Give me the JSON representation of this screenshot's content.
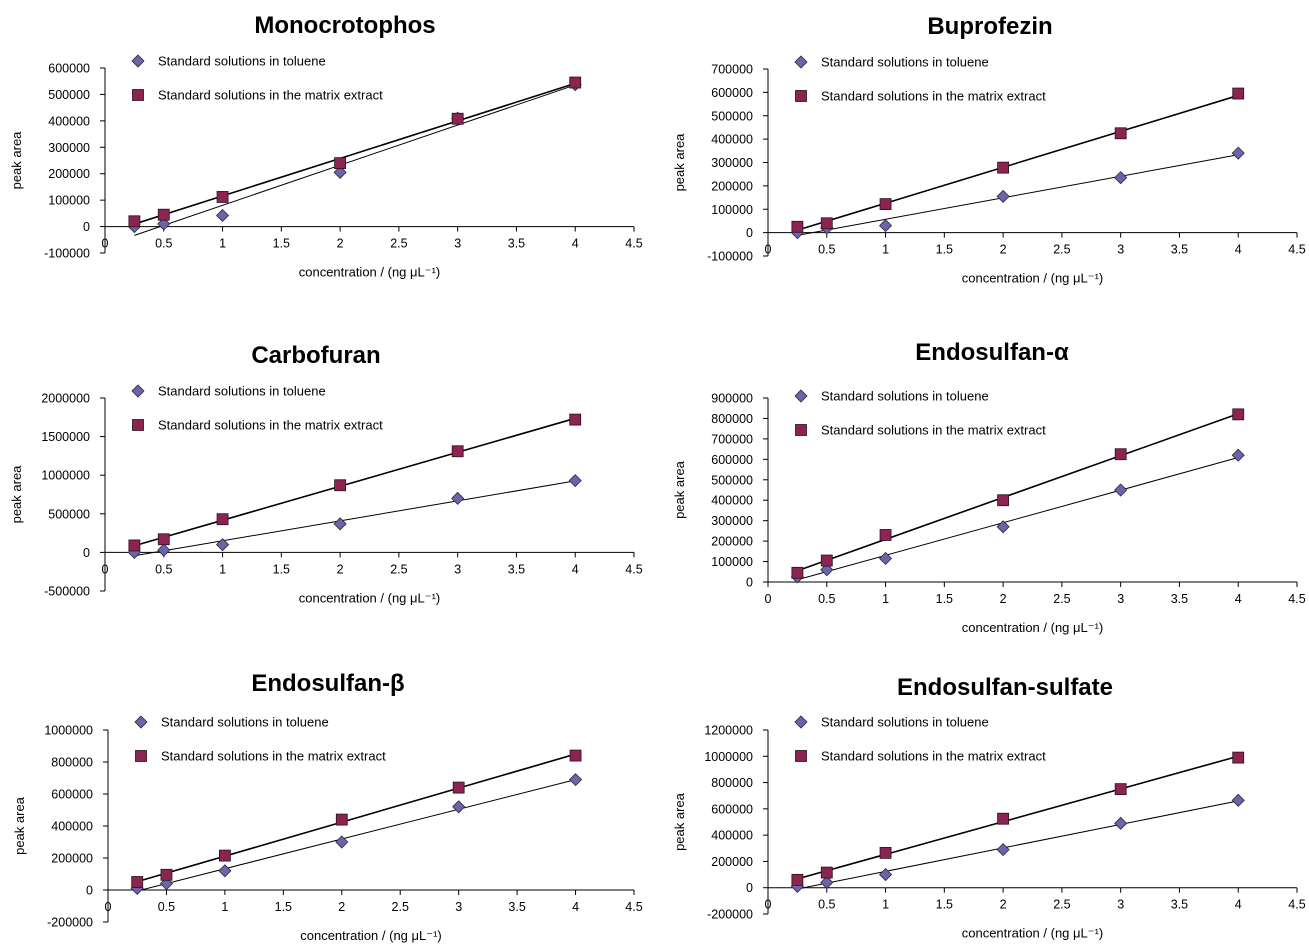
{
  "figure": {
    "legend_labels": {
      "toluene": "Standard solutions in toluene",
      "matrix": "Standard solutions in the matrix extract"
    },
    "colors": {
      "toluene": "#6a64a8",
      "matrix": "#8c2452",
      "line": "#000000"
    }
  },
  "chart_data": [
    {
      "type": "scatter",
      "title": "Monocrotophos",
      "xlabel": "concentration / (ng μL⁻¹)",
      "ylabel": "peak area",
      "xlim": [
        0,
        4.5
      ],
      "ylim": [
        -100000,
        600000
      ],
      "xticks": [
        "0",
        "0.5",
        "1",
        "1.5",
        "2",
        "2.5",
        "3",
        "3.5",
        "4",
        "4.5"
      ],
      "yticks": [
        "-100000",
        "0",
        "100000",
        "200000",
        "300000",
        "400000",
        "500000",
        "600000"
      ],
      "trendlines": true,
      "legend_position": "top-left",
      "series": [
        {
          "name": "Standard solutions in toluene",
          "marker": "diamond",
          "x": [
            0.25,
            0.5,
            1,
            2,
            3,
            4
          ],
          "y": [
            0,
            10000,
            42000,
            205000,
            410000,
            537000
          ]
        },
        {
          "name": "Standard solutions in the matrix extract",
          "marker": "square",
          "x": [
            0.25,
            0.5,
            1,
            2,
            3,
            4
          ],
          "y": [
            20000,
            45000,
            112000,
            240000,
            408000,
            545000
          ]
        }
      ]
    },
    {
      "type": "scatter",
      "title": "Buprofezin",
      "xlabel": "concentration / (ng μL⁻¹)",
      "ylabel": "peak area",
      "xlim": [
        0,
        4.5
      ],
      "ylim": [
        -100000,
        700000
      ],
      "xticks": [
        "0",
        "0.5",
        "1",
        "1.5",
        "2",
        "2.5",
        "3",
        "3.5",
        "4",
        "4.5"
      ],
      "yticks": [
        "-100000",
        "0",
        "100000",
        "200000",
        "300000",
        "400000",
        "500000",
        "600000",
        "700000"
      ],
      "trendlines": true,
      "legend_position": "top-left",
      "series": [
        {
          "name": "Standard solutions in toluene",
          "marker": "diamond",
          "x": [
            0.25,
            0.5,
            1,
            2,
            3,
            4
          ],
          "y": [
            0,
            20000,
            30000,
            155000,
            235000,
            340000
          ]
        },
        {
          "name": "Standard solutions in the matrix extract",
          "marker": "square",
          "x": [
            0.25,
            0.5,
            1,
            2,
            3,
            4
          ],
          "y": [
            25000,
            40000,
            122000,
            278000,
            425000,
            595000
          ]
        }
      ]
    },
    {
      "type": "scatter",
      "title": "Carbofuran",
      "xlabel": "concentration / (ng μL⁻¹)",
      "ylabel": "peak area",
      "xlim": [
        0,
        4.5
      ],
      "ylim": [
        -500000,
        2000000
      ],
      "xticks": [
        "0",
        "0.5",
        "1",
        "1.5",
        "2",
        "2.5",
        "3",
        "3.5",
        "4",
        "4.5"
      ],
      "yticks": [
        "-500000",
        "0",
        "500000",
        "1000000",
        "1500000",
        "2000000"
      ],
      "trendlines": true,
      "legend_position": "top-left",
      "series": [
        {
          "name": "Standard solutions in toluene",
          "marker": "diamond",
          "x": [
            0.25,
            0.5,
            1,
            2,
            3,
            4
          ],
          "y": [
            0,
            30000,
            100000,
            370000,
            700000,
            930000
          ]
        },
        {
          "name": "Standard solutions in the matrix extract",
          "marker": "square",
          "x": [
            0.25,
            0.5,
            1,
            2,
            3,
            4
          ],
          "y": [
            90000,
            170000,
            430000,
            870000,
            1310000,
            1720000
          ]
        }
      ]
    },
    {
      "type": "scatter",
      "title": "Endosulfan-α",
      "xlabel": "concentration / (ng μL⁻¹)",
      "ylabel": "peak area",
      "xlim": [
        0,
        4.5
      ],
      "ylim": [
        0,
        900000
      ],
      "xticks": [
        "0",
        "0.5",
        "1",
        "1.5",
        "2",
        "2.5",
        "3",
        "3.5",
        "4",
        "4.5"
      ],
      "yticks": [
        "0",
        "100000",
        "200000",
        "300000",
        "400000",
        "500000",
        "600000",
        "700000",
        "800000",
        "900000"
      ],
      "trendlines": true,
      "legend_position": "top-left",
      "series": [
        {
          "name": "Standard solutions in toluene",
          "marker": "diamond",
          "x": [
            0.25,
            0.5,
            1,
            2,
            3,
            4
          ],
          "y": [
            25000,
            60000,
            115000,
            270000,
            450000,
            620000
          ]
        },
        {
          "name": "Standard solutions in the matrix extract",
          "marker": "square",
          "x": [
            0.25,
            0.5,
            1,
            2,
            3,
            4
          ],
          "y": [
            45000,
            105000,
            230000,
            400000,
            625000,
            820000
          ]
        }
      ]
    },
    {
      "type": "scatter",
      "title": "Endosulfan-β",
      "xlabel": "concentration / (ng μL⁻¹)",
      "ylabel": "peak area",
      "xlim": [
        0,
        4.5
      ],
      "ylim": [
        -200000,
        1000000
      ],
      "xticks": [
        "0",
        "0.5",
        "1",
        "1.5",
        "2",
        "2.5",
        "3",
        "3.5",
        "4",
        "4.5"
      ],
      "yticks": [
        "-200000",
        "0",
        "200000",
        "400000",
        "600000",
        "800000",
        "1000000"
      ],
      "trendlines": true,
      "legend_position": "top-left",
      "series": [
        {
          "name": "Standard solutions in toluene",
          "marker": "diamond",
          "x": [
            0.25,
            0.5,
            1,
            2,
            3,
            4
          ],
          "y": [
            10000,
            40000,
            120000,
            300000,
            520000,
            690000
          ]
        },
        {
          "name": "Standard solutions in the matrix extract",
          "marker": "square",
          "x": [
            0.25,
            0.5,
            1,
            2,
            3,
            4
          ],
          "y": [
            50000,
            95000,
            215000,
            440000,
            640000,
            840000
          ]
        }
      ]
    },
    {
      "type": "scatter",
      "title": "Endosulfan-sulfate",
      "xlabel": "concentration / (ng μL⁻¹)",
      "ylabel": "peak area",
      "xlim": [
        0,
        4.5
      ],
      "ylim": [
        -200000,
        1200000
      ],
      "xticks": [
        "0",
        "0.5",
        "1",
        "1.5",
        "2",
        "2.5",
        "3",
        "3.5",
        "4",
        "4.5"
      ],
      "yticks": [
        "-200000",
        "0",
        "200000",
        "400000",
        "600000",
        "800000",
        "1000000",
        "1200000"
      ],
      "trendlines": true,
      "legend_position": "top-left",
      "series": [
        {
          "name": "Standard solutions in toluene",
          "marker": "diamond",
          "x": [
            0.25,
            0.5,
            1,
            2,
            3,
            4
          ],
          "y": [
            10000,
            40000,
            100000,
            290000,
            490000,
            665000
          ]
        },
        {
          "name": "Standard solutions in the matrix extract",
          "marker": "square",
          "x": [
            0.25,
            0.5,
            1,
            2,
            3,
            4
          ],
          "y": [
            60000,
            115000,
            265000,
            525000,
            750000,
            990000
          ]
        }
      ]
    }
  ]
}
